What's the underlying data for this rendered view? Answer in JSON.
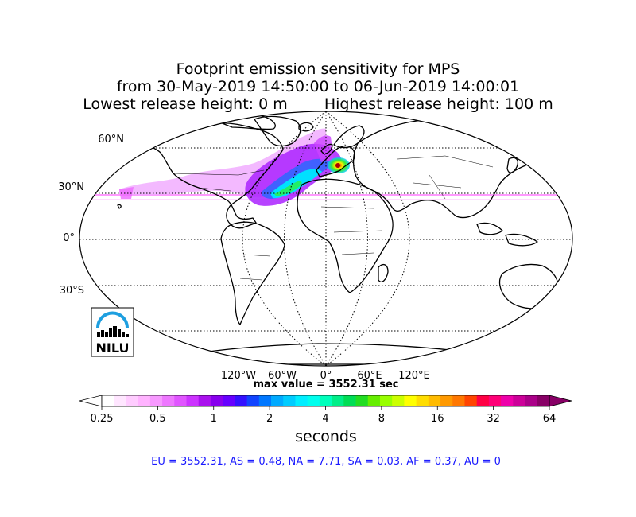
{
  "title": {
    "line1": "Footprint emission sensitivity for MPS",
    "line2": "from 30-May-2019 14:50:00 to 06-Jun-2019 14:00:01",
    "line3a": "Lowest release height: 0 m",
    "line3b": "Highest release height: 100 m"
  },
  "lat_labels": [
    "60°N",
    "30°N",
    "0°",
    "30°S"
  ],
  "lon_labels": [
    "120°W",
    "60°W",
    "0°",
    "60°E",
    "120°E"
  ],
  "logo": {
    "text": "NILU",
    "color": "#1e9fe0"
  },
  "max_value": "max value = 3552.31 sec",
  "colorbar": {
    "ticks": [
      "0.25",
      "0.5",
      "1",
      "2",
      "4",
      "8",
      "16",
      "32",
      "64"
    ],
    "label": "seconds",
    "colors": [
      "#ffffff",
      "#ffe6ff",
      "#ffccff",
      "#ffb3ff",
      "#f799ff",
      "#ee77ff",
      "#e055ff",
      "#cc33ff",
      "#aa11ee",
      "#8800ee",
      "#6600ff",
      "#3311ff",
      "#1144ff",
      "#0077ff",
      "#00aaff",
      "#00ccff",
      "#00eeff",
      "#00ffee",
      "#00ffbb",
      "#00ee88",
      "#00dd55",
      "#22dd22",
      "#66ee00",
      "#99ff00",
      "#ccff00",
      "#ffff00",
      "#ffdd00",
      "#ffbb00",
      "#ff9900",
      "#ff7700",
      "#ff4400",
      "#ff0044",
      "#ff0077",
      "#ee00aa",
      "#cc0099",
      "#aa0088",
      "#880066"
    ]
  },
  "stats": "EU = 3552.31,  AS = 0.48,  NA = 7.71,  SA = 0.03,  AF = 0.37,  AU = 0"
}
